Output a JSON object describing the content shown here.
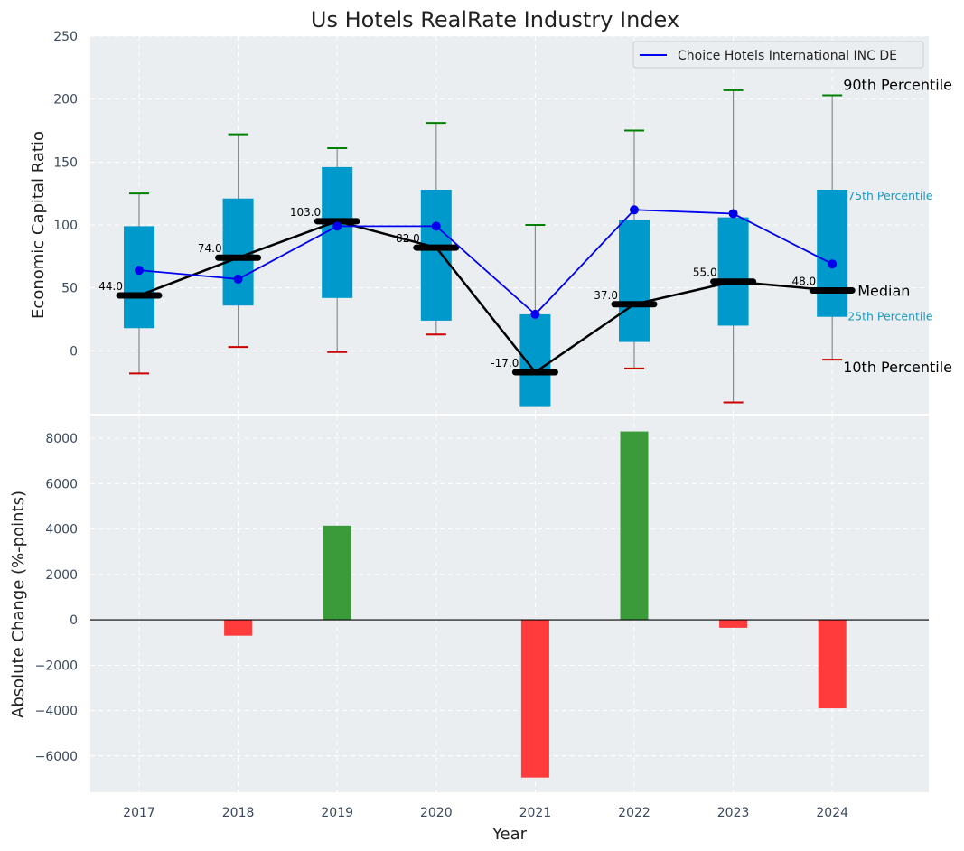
{
  "colors": {
    "box": "#0099cc",
    "whisker_top": "#008000",
    "whisker_bottom": "#cc0000",
    "company_line": "#0000ee",
    "median_line": "#000000",
    "positive_bar": "#3b9b3b",
    "negative_bar": "#ff3b3b",
    "plot_bg": "#eaeef0"
  },
  "chart_data": [
    {
      "type": "box",
      "title": "Us Hotels RealRate Industry Index",
      "xlabel": "",
      "ylabel": "Economic Capital Ratio",
      "ylim": [
        -50,
        250
      ],
      "yticks": [
        0,
        50,
        100,
        150,
        200,
        250
      ],
      "grid": true,
      "legend": {
        "position": "top-right",
        "entries": [
          "Choice Hotels International INC DE"
        ]
      },
      "categories": [
        "2017",
        "2018",
        "2019",
        "2020",
        "2021",
        "2022",
        "2023",
        "2024"
      ],
      "p10": [
        -18,
        3,
        -1,
        13,
        -17,
        -14,
        -41,
        -7
      ],
      "p25": [
        18,
        36,
        42,
        24,
        -44,
        7,
        20,
        27
      ],
      "median": [
        44,
        74,
        103,
        82,
        -17,
        37,
        55,
        48
      ],
      "median_labels": [
        "44.0",
        "74.0",
        "103.0",
        "82.0",
        "-17.0",
        "37.0",
        "55.0",
        "48.0"
      ],
      "p75": [
        99,
        121,
        146,
        128,
        29,
        104,
        106,
        128
      ],
      "p90": [
        125,
        172,
        161,
        181,
        100,
        175,
        207,
        203
      ],
      "company": {
        "name": "Choice Hotels International INC DE",
        "values": [
          64,
          57,
          99,
          99,
          29,
          112,
          109,
          69
        ]
      },
      "annotations": {
        "p90": "90th Percentile",
        "p75": "75th Percentile",
        "median": "Median",
        "p25": "25th Percentile",
        "p10": "10th Percentile"
      }
    },
    {
      "type": "bar",
      "xlabel": "Year",
      "ylabel": "Absolute Change (%-points)",
      "ylim": [
        -7600,
        9000
      ],
      "yticks": [
        -6000,
        -4000,
        -2000,
        0,
        2000,
        4000,
        6000,
        8000
      ],
      "ytick_labels": [
        "−6000",
        "−4000",
        "−2000",
        "0",
        "2000",
        "4000",
        "6000",
        "8000"
      ],
      "grid": true,
      "categories": [
        "2017",
        "2018",
        "2019",
        "2020",
        "2021",
        "2022",
        "2023",
        "2024"
      ],
      "values": [
        0,
        -700,
        4150,
        0,
        -6950,
        8300,
        -350,
        -3900
      ]
    }
  ]
}
